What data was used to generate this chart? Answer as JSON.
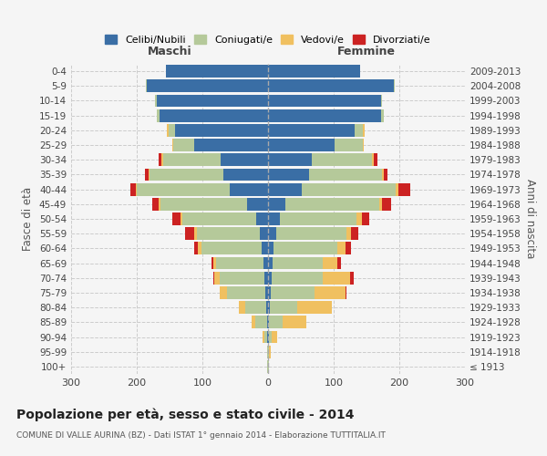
{
  "age_groups": [
    "100+",
    "95-99",
    "90-94",
    "85-89",
    "80-84",
    "75-79",
    "70-74",
    "65-69",
    "60-64",
    "55-59",
    "50-54",
    "45-49",
    "40-44",
    "35-39",
    "30-34",
    "25-29",
    "20-24",
    "15-19",
    "10-14",
    "5-9",
    "0-4"
  ],
  "birth_years": [
    "≤ 1913",
    "1914-1918",
    "1919-1923",
    "1924-1928",
    "1929-1933",
    "1934-1938",
    "1939-1943",
    "1944-1948",
    "1949-1953",
    "1954-1958",
    "1959-1963",
    "1964-1968",
    "1969-1973",
    "1974-1978",
    "1979-1983",
    "1984-1988",
    "1989-1993",
    "1994-1998",
    "1999-2003",
    "2004-2008",
    "2009-2013"
  ],
  "male_celibi": [
    0,
    0,
    1,
    2,
    3,
    4,
    6,
    7,
    10,
    12,
    18,
    32,
    58,
    68,
    72,
    112,
    142,
    165,
    170,
    185,
    155
  ],
  "male_coniugati": [
    1,
    2,
    5,
    18,
    32,
    58,
    68,
    72,
    92,
    97,
    112,
    132,
    142,
    112,
    88,
    32,
    10,
    5,
    2,
    1,
    0
  ],
  "male_vedovi": [
    0,
    0,
    2,
    5,
    10,
    12,
    8,
    5,
    5,
    3,
    3,
    2,
    2,
    2,
    2,
    2,
    2,
    0,
    0,
    0,
    0
  ],
  "male_divorziati": [
    0,
    0,
    0,
    0,
    0,
    0,
    2,
    2,
    5,
    14,
    13,
    10,
    8,
    5,
    5,
    0,
    0,
    0,
    0,
    0,
    0
  ],
  "female_nubili": [
    0,
    0,
    1,
    2,
    3,
    4,
    6,
    7,
    9,
    12,
    18,
    27,
    52,
    62,
    67,
    102,
    132,
    172,
    172,
    192,
    140
  ],
  "female_coniugate": [
    1,
    2,
    5,
    20,
    42,
    67,
    77,
    77,
    97,
    107,
    117,
    142,
    142,
    112,
    92,
    42,
    13,
    5,
    2,
    1,
    0
  ],
  "female_vedove": [
    0,
    2,
    8,
    37,
    52,
    47,
    42,
    22,
    12,
    8,
    8,
    5,
    5,
    3,
    2,
    2,
    2,
    0,
    0,
    0,
    0
  ],
  "female_divorziate": [
    0,
    0,
    0,
    0,
    0,
    2,
    5,
    5,
    9,
    11,
    11,
    13,
    17,
    5,
    5,
    0,
    0,
    0,
    0,
    0,
    0
  ],
  "colors": {
    "celibi": "#3a6ea5",
    "coniugati": "#b5c99a",
    "vedovi": "#f0c060",
    "divorziati": "#cc2222"
  },
  "xlim": 300,
  "title": "Popolazione per età, sesso e stato civile - 2014",
  "subtitle": "COMUNE DI VALLE AURINA (BZ) - Dati ISTAT 1° gennaio 2014 - Elaborazione TUTTITALIA.IT",
  "legend_labels": [
    "Celibi/Nubili",
    "Coniugati/e",
    "Vedovi/e",
    "Divorziati/e"
  ],
  "xlabel_left": "Maschi",
  "xlabel_right": "Femmine",
  "ylabel_left": "Fasce di età",
  "ylabel_right": "Anni di nascita",
  "background_color": "#f5f5f5",
  "grid_color": "#cccccc"
}
